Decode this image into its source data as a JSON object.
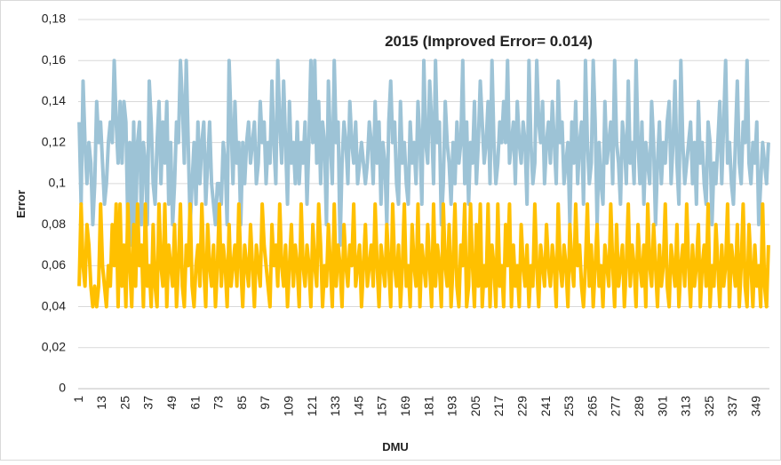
{
  "chart_data": {
    "type": "line",
    "title": "2015  (Improved Error=  0.014)",
    "x_label": "DMU",
    "y_label": "Error",
    "ylim": [
      0,
      0.18
    ],
    "yticks": [
      0,
      {
        "value": 0.02,
        "label": "0,02"
      },
      {
        "value": 0.04,
        "label": "0,04"
      },
      {
        "value": 0.06,
        "label": "0,06"
      },
      {
        "value": 0.08,
        "label": "0,08"
      },
      {
        "value": 0.1,
        "label": "0,1"
      },
      {
        "value": 0.12,
        "label": "0,12"
      },
      {
        "value": 0.14,
        "label": "0,14"
      },
      {
        "value": 0.16,
        "label": "0,16"
      },
      {
        "value": 0.18,
        "label": "0,18"
      }
    ],
    "grid": true,
    "categories": [
      "1",
      null,
      null,
      null,
      null,
      null,
      null,
      null,
      null,
      null,
      null,
      null,
      "13",
      null,
      null,
      null,
      null,
      null,
      null,
      null,
      null,
      null,
      null,
      null,
      "25",
      null,
      null,
      null,
      null,
      null,
      null,
      null,
      null,
      null,
      null,
      null,
      "37",
      null,
      null,
      null,
      null,
      null,
      null,
      null,
      null,
      null,
      null,
      null,
      "49",
      null,
      null,
      null,
      null,
      null,
      null,
      null,
      null,
      null,
      null,
      null,
      "61",
      null,
      null,
      null,
      null,
      null,
      null,
      null,
      null,
      null,
      null,
      null,
      "73",
      null,
      null,
      null,
      null,
      null,
      null,
      null,
      null,
      null,
      null,
      null,
      "85",
      null,
      null,
      null,
      null,
      null,
      null,
      null,
      null,
      null,
      null,
      null,
      "97",
      null,
      null,
      null,
      null,
      null,
      null,
      null,
      null,
      null,
      null,
      null,
      "109",
      null,
      null,
      null,
      null,
      null,
      null,
      null,
      null,
      null,
      null,
      null,
      "121",
      null,
      null,
      null,
      null,
      null,
      null,
      null,
      null,
      null,
      null,
      null,
      "133",
      null,
      null,
      null,
      null,
      null,
      null,
      null,
      null,
      null,
      null,
      null,
      "145",
      null,
      null,
      null,
      null,
      null,
      null,
      null,
      null,
      null,
      null,
      null,
      "157",
      null,
      null,
      null,
      null,
      null,
      null,
      null,
      null,
      null,
      null,
      null,
      "169",
      null,
      null,
      null,
      null,
      null,
      null,
      null,
      null,
      null,
      null,
      null,
      "181",
      null,
      null,
      null,
      null,
      null,
      null,
      null,
      null,
      null,
      null,
      null,
      "193",
      null,
      null,
      null,
      null,
      null,
      null,
      null,
      null,
      null,
      null,
      null,
      "205",
      null,
      null,
      null,
      null,
      null,
      null,
      null,
      null,
      null,
      null,
      null,
      "217",
      null,
      null,
      null,
      null,
      null,
      null,
      null,
      null,
      null,
      null,
      null,
      "229",
      null,
      null,
      null,
      null,
      null,
      null,
      null,
      null,
      null,
      null,
      null,
      "241",
      null,
      null,
      null,
      null,
      null,
      null,
      null,
      null,
      null,
      null,
      null,
      "253",
      null,
      null,
      null,
      null,
      null,
      null,
      null,
      null,
      null,
      null,
      null,
      "265",
      null,
      null,
      null,
      null,
      null,
      null,
      null,
      null,
      null,
      null,
      null,
      "277",
      null,
      null,
      null,
      null,
      null,
      null,
      null,
      null,
      null,
      null,
      null,
      "289",
      null,
      null,
      null,
      null,
      null,
      null,
      null,
      null,
      null,
      null,
      null,
      "301",
      null,
      null,
      null,
      null,
      null,
      null,
      null,
      null,
      null,
      null,
      null,
      "313",
      null,
      null,
      null,
      null,
      null,
      null,
      null,
      null,
      null,
      null,
      null,
      "325",
      null,
      null,
      null,
      null,
      null,
      null,
      null,
      null,
      null,
      null,
      null,
      "337",
      null,
      null,
      null,
      null,
      null,
      null,
      null,
      null,
      null,
      null,
      null,
      "349",
      null,
      null,
      null,
      null,
      null,
      null
    ],
    "series": [
      {
        "color": "#9dc3d6",
        "values": [
          0.13,
          0.09,
          0.15,
          0.12,
          0.1,
          0.12,
          0.11,
          0.08,
          0.1,
          0.14,
          0.12,
          0.13,
          0.11,
          0.09,
          0.1,
          0.12,
          0.13,
          0.12,
          0.16,
          0.13,
          0.11,
          0.14,
          0.11,
          0.14,
          0.13,
          0.08,
          0.12,
          0.07,
          0.13,
          0.08,
          0.12,
          0.13,
          0.08,
          0.12,
          0.11,
          0.08,
          0.15,
          0.13,
          0.1,
          0.09,
          0.12,
          0.14,
          0.1,
          0.13,
          0.11,
          0.14,
          0.09,
          0.12,
          0.08,
          0.1,
          0.13,
          0.12,
          0.16,
          0.14,
          0.11,
          0.16,
          0.12,
          0.08,
          0.1,
          0.12,
          0.09,
          0.13,
          0.1,
          0.12,
          0.13,
          0.09,
          0.11,
          0.13,
          0.1,
          0.09,
          0.08,
          0.1,
          0.1,
          0.09,
          0.12,
          0.11,
          0.08,
          0.16,
          0.13,
          0.1,
          0.14,
          0.11,
          0.12,
          0.08,
          0.12,
          0.1,
          0.12,
          0.13,
          0.11,
          0.12,
          0.13,
          0.1,
          0.11,
          0.14,
          0.12,
          0.13,
          0.1,
          0.12,
          0.11,
          0.15,
          0.12,
          0.1,
          0.16,
          0.13,
          0.11,
          0.15,
          0.12,
          0.09,
          0.14,
          0.11,
          0.12,
          0.1,
          0.13,
          0.1,
          0.12,
          0.11,
          0.13,
          0.09,
          0.12,
          0.16,
          0.12,
          0.16,
          0.11,
          0.14,
          0.1,
          0.13,
          0.12,
          0.08,
          0.15,
          0.12,
          0.1,
          0.16,
          0.12,
          0.13,
          0.07,
          0.11,
          0.13,
          0.12,
          0.1,
          0.14,
          0.12,
          0.11,
          0.13,
          0.1,
          0.11,
          0.12,
          0.11,
          0.1,
          0.11,
          0.13,
          0.12,
          0.1,
          0.14,
          0.11,
          0.13,
          0.09,
          0.12,
          0.11,
          0.08,
          0.13,
          0.15,
          0.12,
          0.13,
          0.1,
          0.09,
          0.14,
          0.11,
          0.12,
          0.1,
          0.09,
          0.13,
          0.11,
          0.12,
          0.1,
          0.14,
          0.12,
          0.09,
          0.16,
          0.12,
          0.11,
          0.15,
          0.13,
          0.1,
          0.16,
          0.12,
          0.13,
          0.08,
          0.1,
          0.14,
          0.12,
          0.11,
          0.09,
          0.12,
          0.1,
          0.13,
          0.11,
          0.12,
          0.16,
          0.1,
          0.13,
          0.09,
          0.12,
          0.11,
          0.14,
          0.1,
          0.12,
          0.15,
          0.13,
          0.11,
          0.12,
          0.14,
          0.1,
          0.16,
          0.12,
          0.1,
          0.11,
          0.13,
          0.12,
          0.14,
          0.12,
          0.16,
          0.11,
          0.12,
          0.13,
          0.1,
          0.14,
          0.12,
          0.11,
          0.13,
          0.12,
          0.09,
          0.16,
          0.12,
          0.1,
          0.11,
          0.16,
          0.13,
          0.12,
          0.14,
          0.1,
          0.12,
          0.13,
          0.11,
          0.14,
          0.12,
          0.1,
          0.15,
          0.12,
          0.13,
          0.1,
          0.11,
          0.12,
          0.08,
          0.13,
          0.11,
          0.14,
          0.1,
          0.12,
          0.13,
          0.09,
          0.16,
          0.12,
          0.1,
          0.11,
          0.16,
          0.13,
          0.08,
          0.12,
          0.1,
          0.09,
          0.14,
          0.11,
          0.12,
          0.13,
          0.1,
          0.16,
          0.12,
          0.11,
          0.09,
          0.13,
          0.12,
          0.1,
          0.15,
          0.11,
          0.12,
          0.1,
          0.16,
          0.12,
          0.1,
          0.13,
          0.09,
          0.12,
          0.11,
          0.1,
          0.14,
          0.12,
          0.08,
          0.11,
          0.13,
          0.1,
          0.12,
          0.11,
          0.13,
          0.14,
          0.1,
          0.12,
          0.15,
          0.11,
          0.09,
          0.16,
          0.12,
          0.1,
          0.11,
          0.12,
          0.13,
          0.1,
          0.12,
          0.09,
          0.14,
          0.11,
          0.12,
          0.1,
          0.09,
          0.13,
          0.12,
          0.08,
          0.11,
          0.1,
          0.12,
          0.14,
          0.1,
          0.13,
          0.16,
          0.11,
          0.12,
          0.1,
          0.09,
          0.12,
          0.15,
          0.11,
          0.1,
          0.13,
          0.12,
          0.16,
          0.11,
          0.1,
          0.12,
          0.11,
          0.13,
          0.08,
          0.1,
          0.12,
          0.11,
          0.1,
          0.12
        ]
      },
      {
        "color": "#ffc000",
        "values": [
          0.05,
          0.09,
          0.06,
          0.05,
          0.08,
          0.07,
          0.05,
          0.04,
          0.05,
          0.04,
          0.05,
          0.09,
          0.06,
          0.05,
          0.04,
          0.06,
          0.05,
          0.08,
          0.06,
          0.09,
          0.04,
          0.09,
          0.05,
          0.07,
          0.04,
          0.09,
          0.06,
          0.04,
          0.08,
          0.05,
          0.09,
          0.06,
          0.07,
          0.04,
          0.09,
          0.05,
          0.06,
          0.04,
          0.08,
          0.05,
          0.04,
          0.09,
          0.06,
          0.05,
          0.09,
          0.04,
          0.07,
          0.06,
          0.05,
          0.08,
          0.04,
          0.06,
          0.09,
          0.05,
          0.04,
          0.07,
          0.06,
          0.09,
          0.05,
          0.04,
          0.06,
          0.07,
          0.05,
          0.09,
          0.06,
          0.04,
          0.08,
          0.06,
          0.05,
          0.07,
          0.04,
          0.06,
          0.09,
          0.05,
          0.07,
          0.06,
          0.04,
          0.08,
          0.05,
          0.06,
          0.07,
          0.05,
          0.09,
          0.06,
          0.04,
          0.07,
          0.06,
          0.05,
          0.08,
          0.06,
          0.04,
          0.07,
          0.06,
          0.05,
          0.09,
          0.07,
          0.06,
          0.05,
          0.04,
          0.08,
          0.06,
          0.07,
          0.05,
          0.09,
          0.06,
          0.05,
          0.07,
          0.04,
          0.06,
          0.08,
          0.05,
          0.07,
          0.06,
          0.04,
          0.09,
          0.06,
          0.05,
          0.07,
          0.06,
          0.04,
          0.08,
          0.06,
          0.05,
          0.09,
          0.07,
          0.04,
          0.06,
          0.05,
          0.08,
          0.06,
          0.04,
          0.09,
          0.05,
          0.07,
          0.06,
          0.04,
          0.08,
          0.06,
          0.05,
          0.07,
          0.06,
          0.09,
          0.05,
          0.06,
          0.07,
          0.04,
          0.06,
          0.08,
          0.05,
          0.06,
          0.07,
          0.05,
          0.09,
          0.06,
          0.04,
          0.07,
          0.06,
          0.05,
          0.08,
          0.06,
          0.04,
          0.09,
          0.06,
          0.05,
          0.07,
          0.04,
          0.06,
          0.09,
          0.05,
          0.06,
          0.04,
          0.08,
          0.06,
          0.05,
          0.09,
          0.04,
          0.07,
          0.06,
          0.05,
          0.08,
          0.06,
          0.04,
          0.09,
          0.05,
          0.07,
          0.06,
          0.04,
          0.09,
          0.06,
          0.05,
          0.08,
          0.04,
          0.06,
          0.09,
          0.05,
          0.04,
          0.07,
          0.06,
          0.09,
          0.04,
          0.05,
          0.09,
          0.06,
          0.04,
          0.08,
          0.05,
          0.09,
          0.04,
          0.06,
          0.05,
          0.09,
          0.04,
          0.07,
          0.06,
          0.04,
          0.09,
          0.05,
          0.06,
          0.04,
          0.08,
          0.06,
          0.09,
          0.04,
          0.07,
          0.05,
          0.06,
          0.04,
          0.08,
          0.06,
          0.05,
          0.07,
          0.04,
          0.06,
          0.05,
          0.09,
          0.06,
          0.04,
          0.07,
          0.06,
          0.05,
          0.08,
          0.06,
          0.05,
          0.07,
          0.06,
          0.04,
          0.09,
          0.06,
          0.05,
          0.07,
          0.06,
          0.04,
          0.08,
          0.06,
          0.05,
          0.09,
          0.06,
          0.07,
          0.05,
          0.04,
          0.06,
          0.09,
          0.05,
          0.07,
          0.04,
          0.06,
          0.08,
          0.05,
          0.06,
          0.04,
          0.07,
          0.06,
          0.05,
          0.09,
          0.06,
          0.04,
          0.08,
          0.05,
          0.06,
          0.07,
          0.04,
          0.06,
          0.09,
          0.05,
          0.07,
          0.06,
          0.04,
          0.08,
          0.06,
          0.05,
          0.07,
          0.04,
          0.09,
          0.06,
          0.05,
          0.08,
          0.06,
          0.04,
          0.07,
          0.05,
          0.06,
          0.09,
          0.05,
          0.04,
          0.07,
          0.06,
          0.05,
          0.08,
          0.04,
          0.06,
          0.07,
          0.05,
          0.09,
          0.06,
          0.04,
          0.07,
          0.05,
          0.06,
          0.08,
          0.04,
          0.06,
          0.07,
          0.05,
          0.09,
          0.04,
          0.06,
          0.05,
          0.08,
          0.06,
          0.04,
          0.07,
          0.05,
          0.06,
          0.09,
          0.04,
          0.07,
          0.06,
          0.05,
          0.08,
          0.04,
          0.06,
          0.09,
          0.05,
          0.04,
          0.08,
          0.06,
          0.04,
          0.07,
          0.05,
          0.06,
          0.04,
          0.09,
          0.05,
          0.04,
          0.07
        ]
      }
    ]
  }
}
